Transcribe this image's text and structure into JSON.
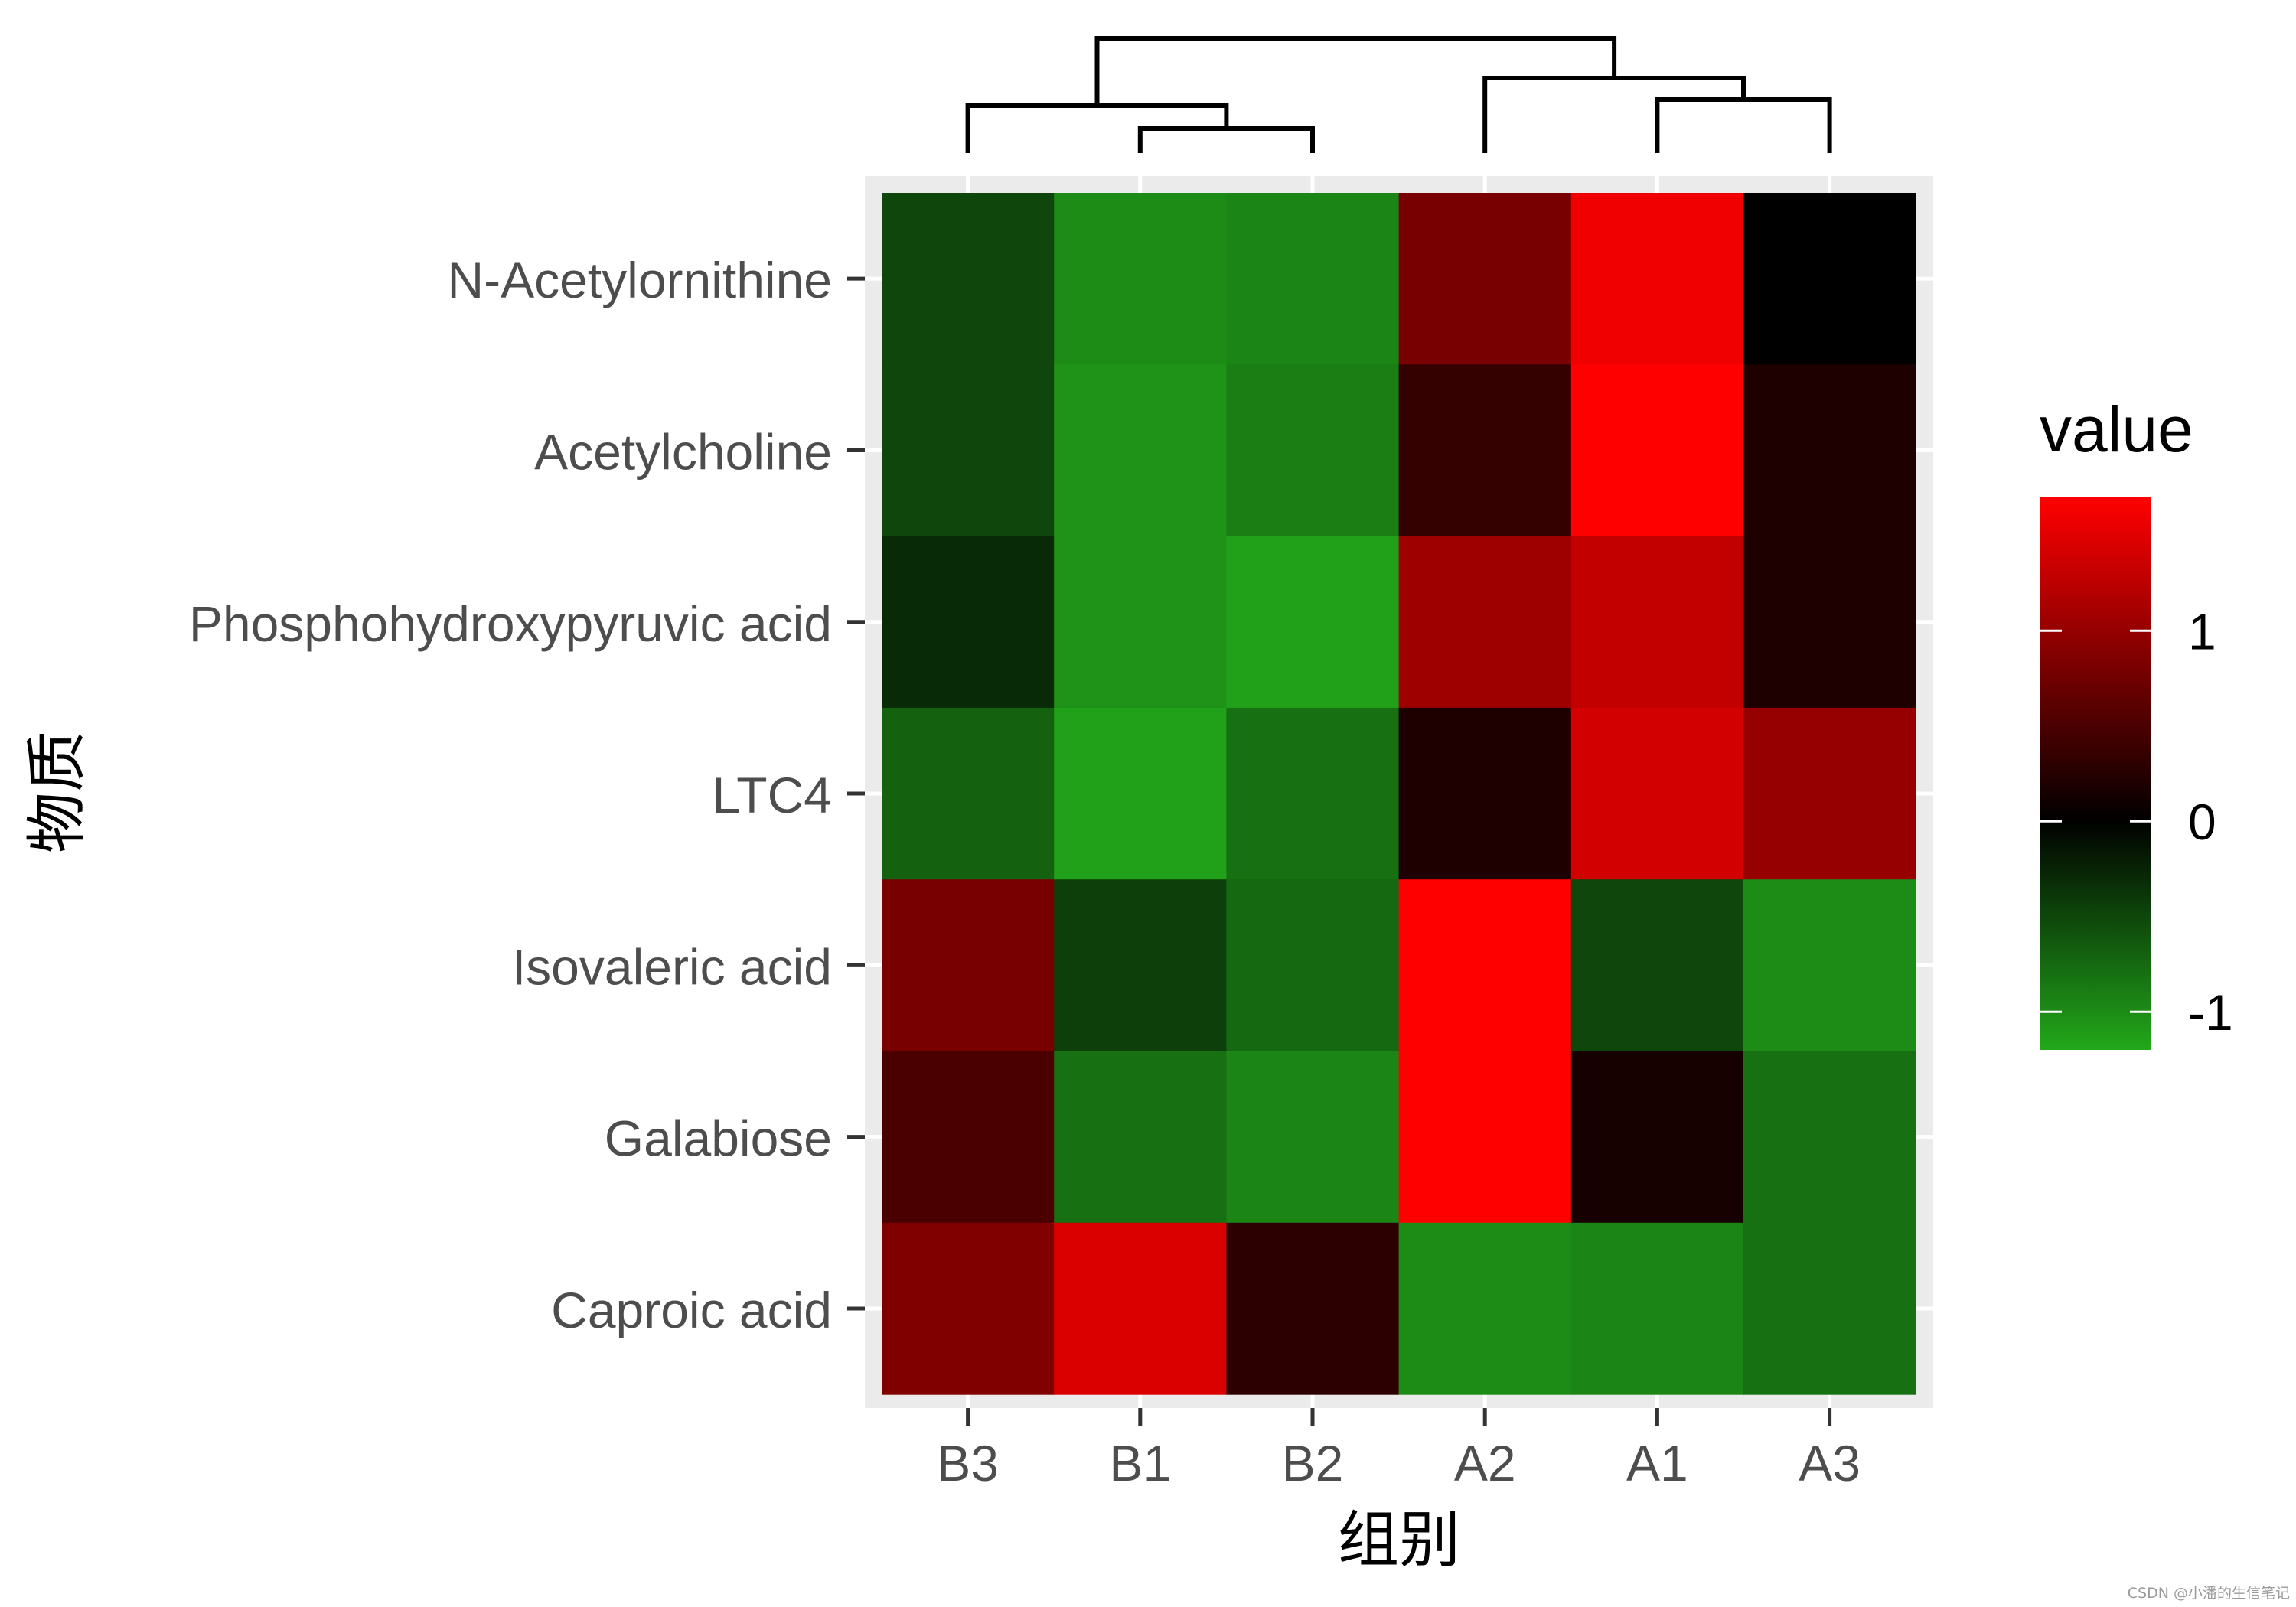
{
  "chart_data": {
    "type": "heatmap",
    "xlabel": "组别",
    "ylabel": "物质",
    "x_categories": [
      "B3",
      "B1",
      "B2",
      "A2",
      "A1",
      "A3"
    ],
    "y_categories": [
      "N-Acetylornithine",
      "Acetylcholine",
      "Phosphohydroxypyruvic acid",
      "LTC4",
      "Isovaleric acid",
      "Galabiose",
      "Caproic acid"
    ],
    "values": [
      [
        -0.5,
        -1.0,
        -0.95,
        0.8,
        1.6,
        0.0
      ],
      [
        -0.5,
        -1.05,
        -0.9,
        0.35,
        1.7,
        0.2
      ],
      [
        -0.3,
        -1.05,
        -1.15,
        1.05,
        1.3,
        0.2
      ],
      [
        -0.7,
        -1.15,
        -0.8,
        0.2,
        1.4,
        1.0
      ],
      [
        0.8,
        -0.45,
        -0.75,
        1.7,
        -0.5,
        -1.0
      ],
      [
        0.5,
        -0.8,
        -0.95,
        1.7,
        0.15,
        -0.8
      ],
      [
        0.85,
        1.45,
        0.3,
        -1.0,
        -0.95,
        -0.8
      ]
    ],
    "color_scale": {
      "low_color": "#22a81a",
      "mid_color": "#000000",
      "high_color": "#ff0000",
      "min": -1.2,
      "mid": 0,
      "max": 1.7
    },
    "legend": {
      "title": "value",
      "ticks": [
        1,
        0,
        -1
      ],
      "placement": "right"
    },
    "column_dendrogram": true,
    "panel_background": "#ebebeb"
  },
  "watermark": "CSDN @小潘的生信笔记"
}
